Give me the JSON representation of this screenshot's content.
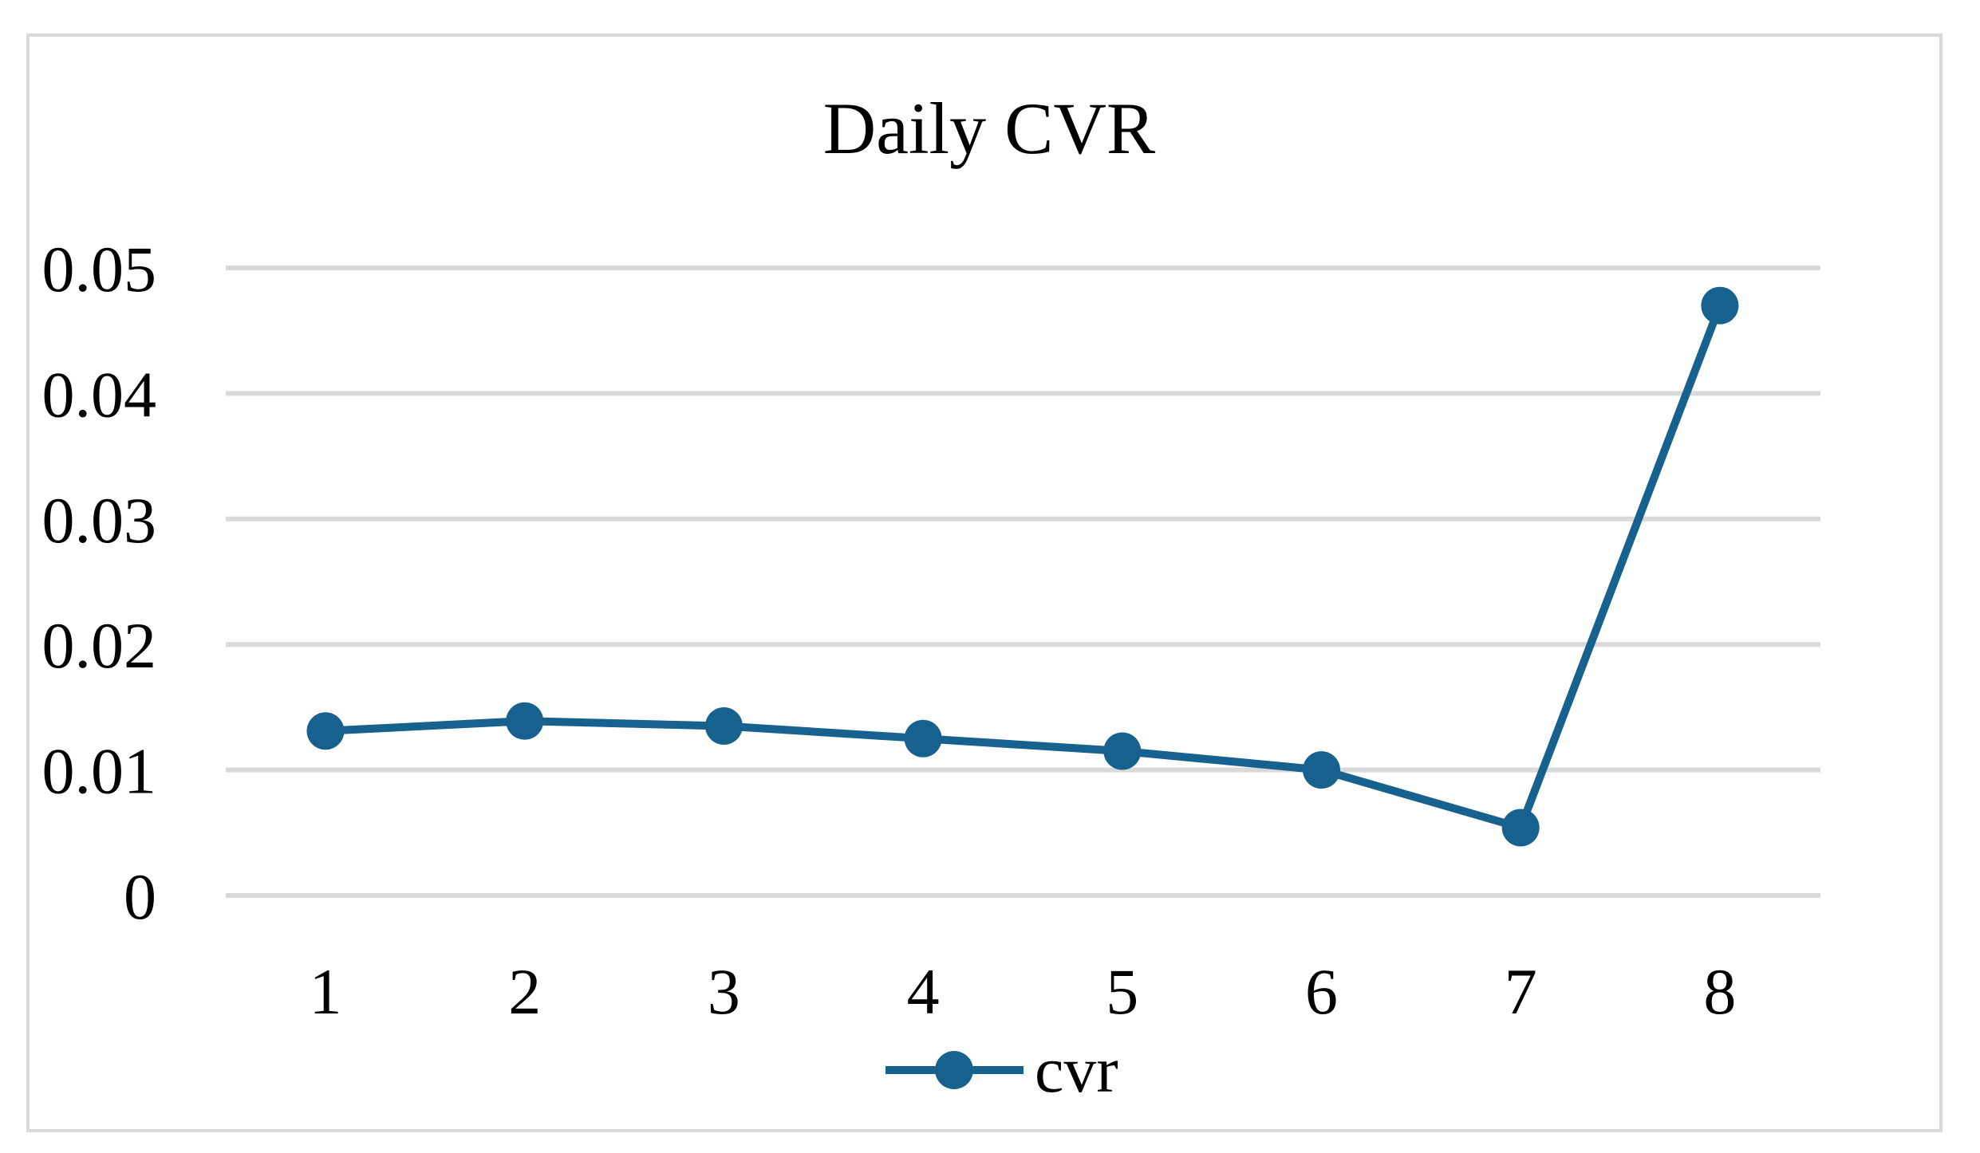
{
  "title": "Daily CVR",
  "legend": {
    "label": "cvr"
  },
  "colors": {
    "series_line": "#17618F",
    "gridline": "#d9d9d9",
    "frame_border": "#d9d9d9",
    "text": "#000000",
    "background": "#ffffff"
  },
  "chart_data": {
    "type": "line",
    "title": "Daily CVR",
    "categories": [
      "1",
      "2",
      "3",
      "4",
      "5",
      "6",
      "7",
      "8"
    ],
    "series": [
      {
        "name": "cvr",
        "values": [
          0.0131,
          0.0139,
          0.0135,
          0.0125,
          0.0115,
          0.01,
          0.0054,
          0.047
        ]
      }
    ],
    "xlabel": "",
    "ylabel": "",
    "ylim": [
      0,
      0.05
    ],
    "y_ticks": [
      {
        "label": "0.05",
        "value": 0.05
      },
      {
        "label": "0.04",
        "value": 0.04
      },
      {
        "label": "0.03",
        "value": 0.03
      },
      {
        "label": "0.02",
        "value": 0.02
      },
      {
        "label": "0.01",
        "value": 0.01
      },
      {
        "label": "0",
        "value": 0.0
      }
    ],
    "grid": "horizontal-only",
    "legend_position": "bottom-center",
    "marker": "circle"
  }
}
